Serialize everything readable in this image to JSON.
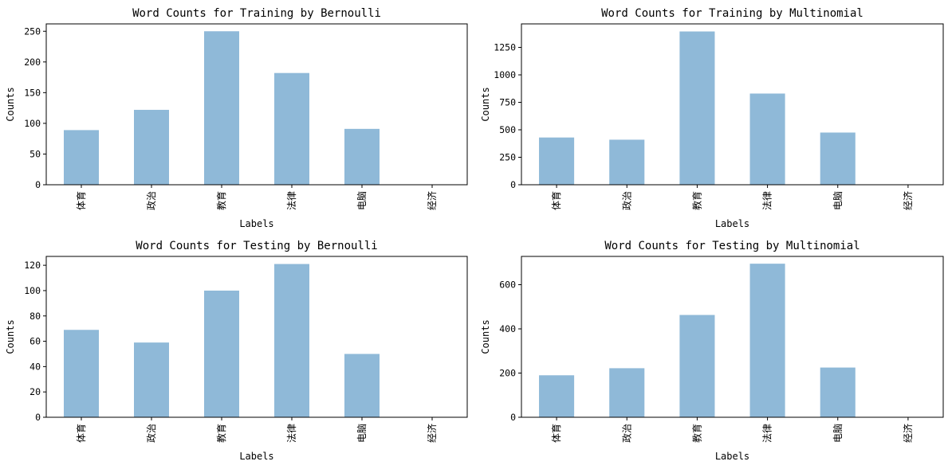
{
  "chart_data": [
    {
      "type": "bar",
      "title": "Word Counts for Training by Bernoulli",
      "xlabel": "Labels",
      "ylabel": "Counts",
      "categories": [
        "体育",
        "政治",
        "教育",
        "法律",
        "电脑",
        "经济"
      ],
      "values": [
        89,
        122,
        250,
        182,
        91,
        0
      ],
      "ylim": [
        0,
        262
      ],
      "yticks": [
        0,
        50,
        100,
        150,
        200,
        250
      ],
      "grid": false,
      "bar_color": "#8fb9d8"
    },
    {
      "type": "bar",
      "title": "Word Counts for Training by Multinomial",
      "xlabel": "Labels",
      "ylabel": "Counts",
      "categories": [
        "体育",
        "政治",
        "教育",
        "法律",
        "电脑",
        "经济"
      ],
      "values": [
        430,
        410,
        1395,
        830,
        475,
        0
      ],
      "ylim": [
        0,
        1464
      ],
      "yticks": [
        0,
        250,
        500,
        750,
        1000,
        1250
      ],
      "grid": false,
      "bar_color": "#8fb9d8"
    },
    {
      "type": "bar",
      "title": "Word Counts for Testing by Bernoulli",
      "xlabel": "Labels",
      "ylabel": "Counts",
      "categories": [
        "体育",
        "政治",
        "教育",
        "法律",
        "电脑",
        "经济"
      ],
      "values": [
        69,
        59,
        100,
        121,
        50,
        0
      ],
      "ylim": [
        0,
        127
      ],
      "yticks": [
        0,
        20,
        40,
        60,
        80,
        100,
        120
      ],
      "grid": false,
      "bar_color": "#8fb9d8"
    },
    {
      "type": "bar",
      "title": "Word Counts for Testing by Multinomial",
      "xlabel": "Labels",
      "ylabel": "Counts",
      "categories": [
        "体育",
        "政治",
        "教育",
        "法律",
        "电脑",
        "经济"
      ],
      "values": [
        190,
        222,
        463,
        695,
        225,
        0
      ],
      "ylim": [
        0,
        728
      ],
      "yticks": [
        0,
        200,
        400,
        600
      ],
      "grid": false,
      "bar_color": "#8fb9d8"
    }
  ]
}
